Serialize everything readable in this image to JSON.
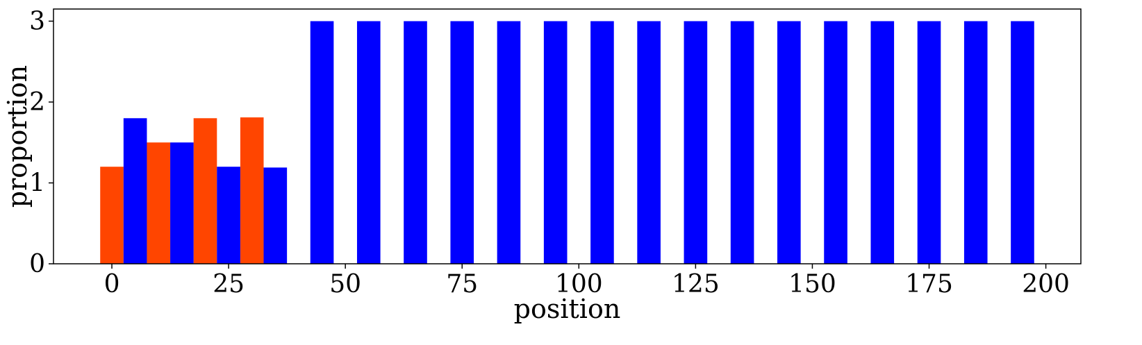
{
  "chart_data": {
    "type": "bar",
    "xlabel": "position",
    "ylabel": "proportion",
    "xlim": [
      -12.5,
      207.5
    ],
    "ylim": [
      0,
      3.15
    ],
    "bar_width": 5,
    "xticks": [
      0,
      25,
      50,
      75,
      100,
      125,
      150,
      175,
      200
    ],
    "yticks": [
      0,
      1,
      2,
      3
    ],
    "grid": false,
    "legend": "none",
    "series": [
      {
        "color": "#ff4500",
        "points": [
          {
            "x": 0,
            "y": 1.2
          },
          {
            "x": 10,
            "y": 1.5
          },
          {
            "x": 20,
            "y": 1.8
          },
          {
            "x": 30,
            "y": 1.81
          }
        ]
      },
      {
        "color": "#0000ff",
        "points": [
          {
            "x": 5,
            "y": 1.8
          },
          {
            "x": 15,
            "y": 1.5
          },
          {
            "x": 25,
            "y": 1.2
          },
          {
            "x": 35,
            "y": 1.19
          },
          {
            "x": 45,
            "y": 3
          },
          {
            "x": 55,
            "y": 3
          },
          {
            "x": 65,
            "y": 3
          },
          {
            "x": 75,
            "y": 3
          },
          {
            "x": 85,
            "y": 3
          },
          {
            "x": 95,
            "y": 3
          },
          {
            "x": 105,
            "y": 3
          },
          {
            "x": 115,
            "y": 3
          },
          {
            "x": 125,
            "y": 3
          },
          {
            "x": 135,
            "y": 3
          },
          {
            "x": 145,
            "y": 3
          },
          {
            "x": 155,
            "y": 3
          },
          {
            "x": 165,
            "y": 3
          },
          {
            "x": 175,
            "y": 3
          },
          {
            "x": 185,
            "y": 3
          },
          {
            "x": 195,
            "y": 3
          }
        ]
      }
    ]
  }
}
